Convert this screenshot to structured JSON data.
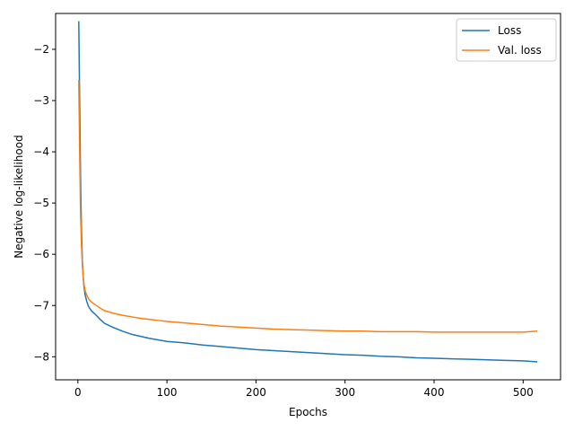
{
  "chart_data": {
    "type": "line",
    "xlabel": "Epochs",
    "ylabel": "Negative log-likelihood",
    "xlim": [
      -25,
      542
    ],
    "ylim": [
      -8.45,
      -1.3
    ],
    "xticks": [
      0,
      100,
      200,
      300,
      400,
      500
    ],
    "yticks": [
      -2,
      -3,
      -4,
      -5,
      -6,
      -7,
      -8
    ],
    "xtick_labels": [
      "0",
      "100",
      "200",
      "300",
      "400",
      "500"
    ],
    "ytick_labels": [
      "−2",
      "−3",
      "−4",
      "−5",
      "−6",
      "−7",
      "−8"
    ],
    "grid": false,
    "legend_position": "top-right",
    "series": [
      {
        "name": "Loss",
        "color": "#1f77b4",
        "x": [
          1,
          2,
          3,
          4,
          5,
          6,
          7,
          8,
          10,
          12,
          15,
          20,
          25,
          30,
          40,
          50,
          60,
          70,
          80,
          90,
          100,
          120,
          140,
          160,
          180,
          200,
          220,
          240,
          260,
          280,
          300,
          320,
          340,
          360,
          380,
          400,
          420,
          440,
          460,
          480,
          500,
          516
        ],
        "values": [
          -1.45,
          -3.0,
          -4.5,
          -5.5,
          -6.1,
          -6.45,
          -6.65,
          -6.78,
          -6.92,
          -7.02,
          -7.1,
          -7.18,
          -7.27,
          -7.35,
          -7.43,
          -7.5,
          -7.56,
          -7.6,
          -7.64,
          -7.67,
          -7.7,
          -7.73,
          -7.77,
          -7.8,
          -7.83,
          -7.86,
          -7.88,
          -7.9,
          -7.92,
          -7.94,
          -7.96,
          -7.97,
          -7.99,
          -8.0,
          -8.02,
          -8.03,
          -8.04,
          -8.05,
          -8.06,
          -8.07,
          -8.08,
          -8.1
        ]
      },
      {
        "name": "Val. loss",
        "color": "#ff7f0e",
        "x": [
          1,
          2,
          3,
          4,
          5,
          6,
          7,
          8,
          10,
          12,
          15,
          20,
          25,
          30,
          40,
          50,
          60,
          70,
          80,
          90,
          100,
          120,
          140,
          160,
          180,
          200,
          220,
          240,
          260,
          280,
          300,
          320,
          340,
          360,
          380,
          400,
          420,
          440,
          460,
          480,
          500,
          516
        ],
        "values": [
          -2.6,
          -4.0,
          -5.2,
          -5.8,
          -6.2,
          -6.45,
          -6.6,
          -6.7,
          -6.8,
          -6.87,
          -6.93,
          -6.99,
          -7.05,
          -7.1,
          -7.15,
          -7.19,
          -7.22,
          -7.25,
          -7.27,
          -7.29,
          -7.31,
          -7.34,
          -7.37,
          -7.4,
          -7.42,
          -7.44,
          -7.46,
          -7.47,
          -7.48,
          -7.49,
          -7.5,
          -7.5,
          -7.51,
          -7.51,
          -7.51,
          -7.52,
          -7.52,
          -7.52,
          -7.52,
          -7.52,
          -7.52,
          -7.5
        ]
      }
    ]
  }
}
